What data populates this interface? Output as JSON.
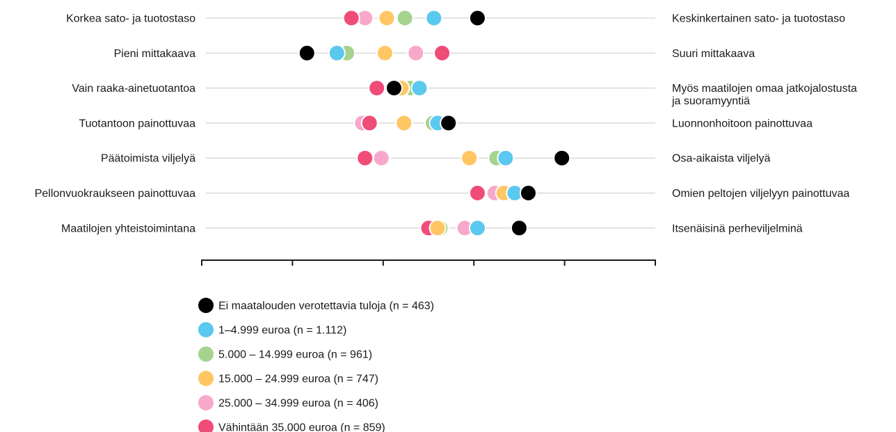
{
  "chart_data": {
    "type": "scatter",
    "title": "",
    "xlabel": "",
    "ylabel": "",
    "xlim": [
      0,
      5
    ],
    "x_ticks": [
      0,
      1,
      2,
      3,
      4,
      5
    ],
    "grid": false,
    "legend_placement": "bottom-left",
    "rows": [
      {
        "left": "Korkea sato- ja tuotostaso",
        "right": [
          "Keskinkertainen sato- ja tuotostaso"
        ]
      },
      {
        "left": "Pieni mittakaava",
        "right": [
          "Suuri mittakaava"
        ]
      },
      {
        "left": "Vain raaka-ainetuotantoa",
        "right": [
          "Myös maatilojen omaa jatkojalostusta",
          "ja suoramyyntiä"
        ]
      },
      {
        "left": "Tuotantoon painottuvaa",
        "right": [
          "Luonnonhoitoon painottuvaa"
        ]
      },
      {
        "left": "Päätoimista viljelyä",
        "right": [
          "Osa-aikaista viljelyä"
        ]
      },
      {
        "left": "Pellonvuokraukseen painottuvaa",
        "right": [
          "Omien peltojen viljelyyn painottuvaa"
        ]
      },
      {
        "left": "Maatilojen yhteistoimintana",
        "right": [
          "Itsenäisinä perheviljelminä"
        ]
      }
    ],
    "series": [
      {
        "name": "Ei maatalouden verotettavia tuloja (n = 463)",
        "color": "#000000",
        "values": [
          3.04,
          1.16,
          2.12,
          2.72,
          3.97,
          3.6,
          3.5
        ]
      },
      {
        "name": "1–4.999 euroa (n = 1.112)",
        "color": "#5bc8ef",
        "values": [
          2.56,
          1.49,
          2.4,
          2.6,
          3.35,
          3.45,
          3.04
        ]
      },
      {
        "name": "5.000 – 14.999 euroa (n = 961)",
        "color": "#a6d38d",
        "values": [
          2.24,
          1.6,
          2.3,
          2.55,
          3.25,
          3.4,
          2.63
        ]
      },
      {
        "name": "15.000 – 24.999 euroa (n = 747)",
        "color": "#ffc663",
        "values": [
          2.04,
          2.02,
          2.2,
          2.23,
          2.95,
          3.33,
          2.6
        ]
      },
      {
        "name": "25.000 – 34.999 euroa (n = 406)",
        "color": "#f7a8cb",
        "values": [
          1.8,
          2.36,
          2.1,
          1.77,
          1.98,
          3.23,
          2.9
        ]
      },
      {
        "name": "Vähintään 35.000 euroa (n = 859)",
        "color": "#ef4c78",
        "values": [
          1.65,
          2.65,
          1.93,
          1.85,
          1.8,
          3.04,
          2.5
        ]
      }
    ]
  }
}
